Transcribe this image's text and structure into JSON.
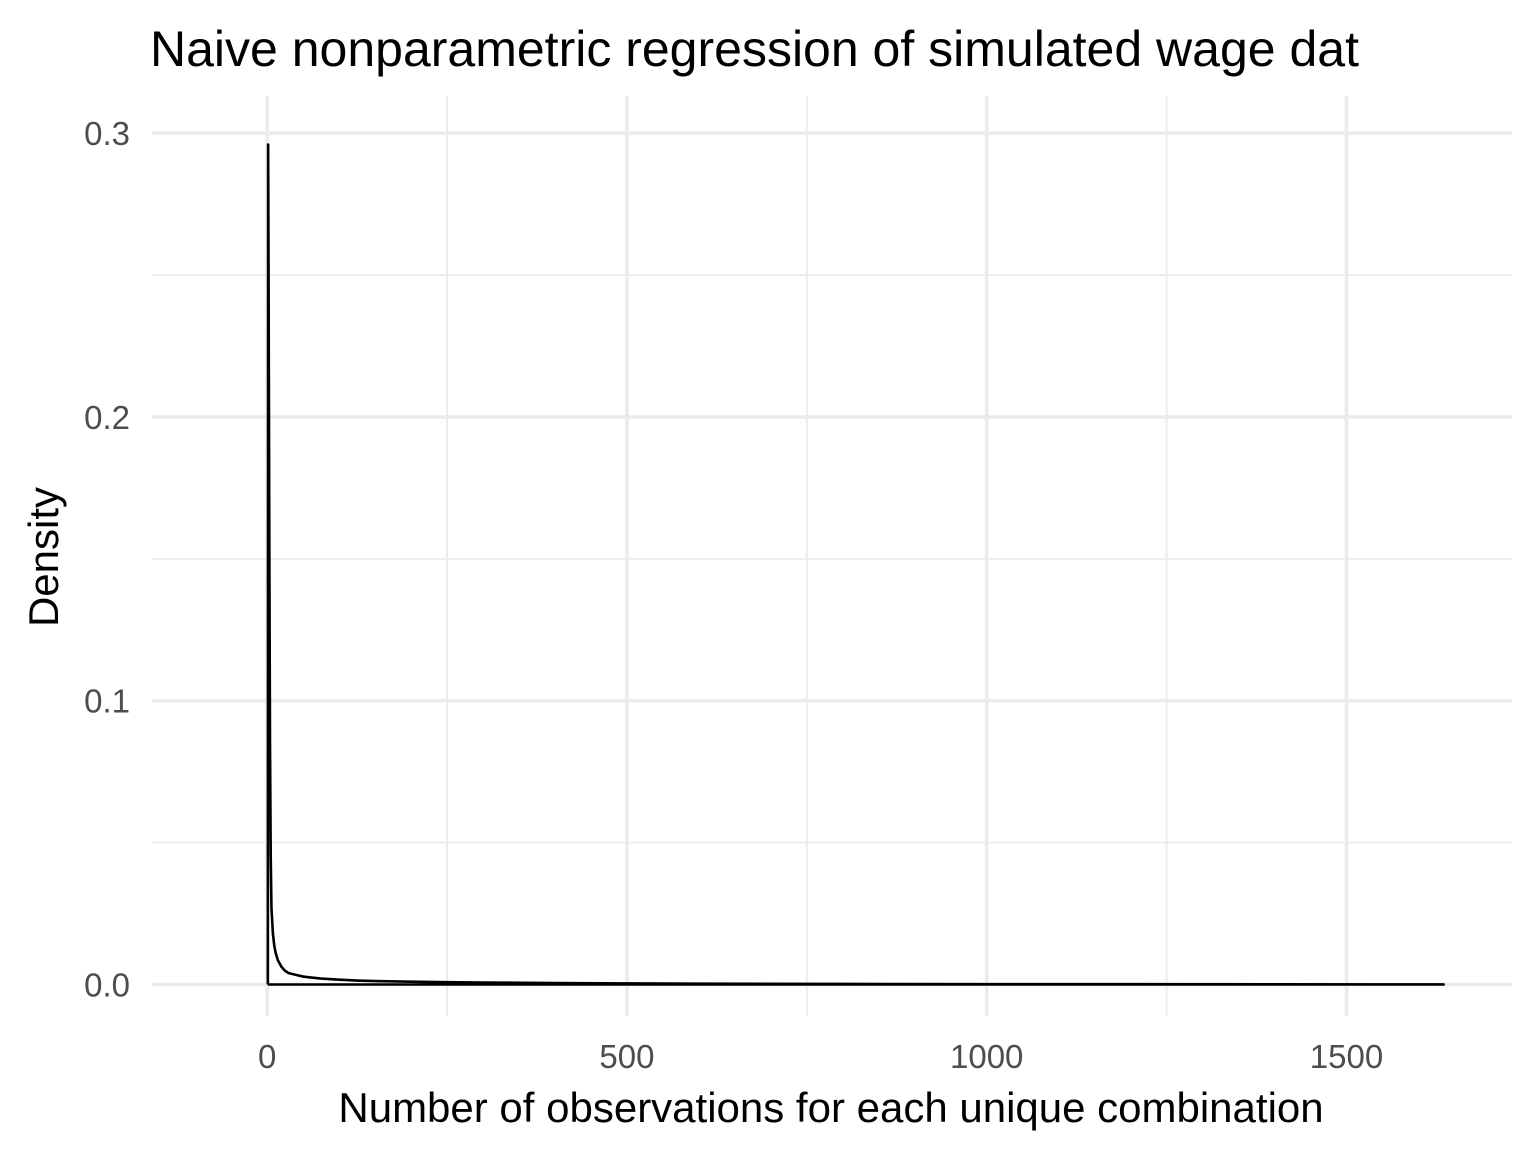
{
  "chart_data": {
    "type": "line",
    "title": "Naive nonparametric regression of simulated wage dat",
    "xlabel": "Number of observations for each unique combination",
    "ylabel": "Density",
    "xlim": [
      -160,
      1730
    ],
    "ylim": [
      -0.0111,
      0.3131
    ],
    "x_major_ticks": [
      0,
      500,
      1000,
      1500
    ],
    "x_minor_ticks": [
      250,
      750,
      1250
    ],
    "x_tick_labels": [
      "0",
      "500",
      "1000",
      "1500"
    ],
    "y_major_ticks": [
      0.0,
      0.1,
      0.2,
      0.3
    ],
    "y_minor_ticks": [
      0.05,
      0.15,
      0.25
    ],
    "y_tick_labels": [
      "0.0",
      "0.1",
      "0.2",
      "0.3"
    ],
    "grid": true,
    "line_color": "#000000",
    "series": [
      {
        "x": [
          1,
          1.4,
          2,
          3,
          4,
          5,
          6,
          8,
          10,
          12,
          15,
          20,
          25,
          30,
          40,
          50,
          60,
          75,
          100,
          125,
          150,
          200,
          250,
          300,
          400,
          500,
          600,
          800,
          1000,
          1200,
          1400,
          1635,
          1635,
          1
        ],
        "y": [
          0,
          0.296,
          0.25,
          0.16,
          0.085,
          0.045,
          0.027,
          0.018,
          0.0135,
          0.011,
          0.0085,
          0.0062,
          0.0048,
          0.004,
          0.0034,
          0.0028,
          0.0025,
          0.0021,
          0.0017,
          0.0014,
          0.0012,
          0.001,
          0.0008,
          0.0007,
          0.0005,
          0.0004,
          0.0003,
          0.0002,
          0.0001,
          0.0001,
          5e-05,
          3e-05,
          0,
          0
        ]
      }
    ]
  }
}
